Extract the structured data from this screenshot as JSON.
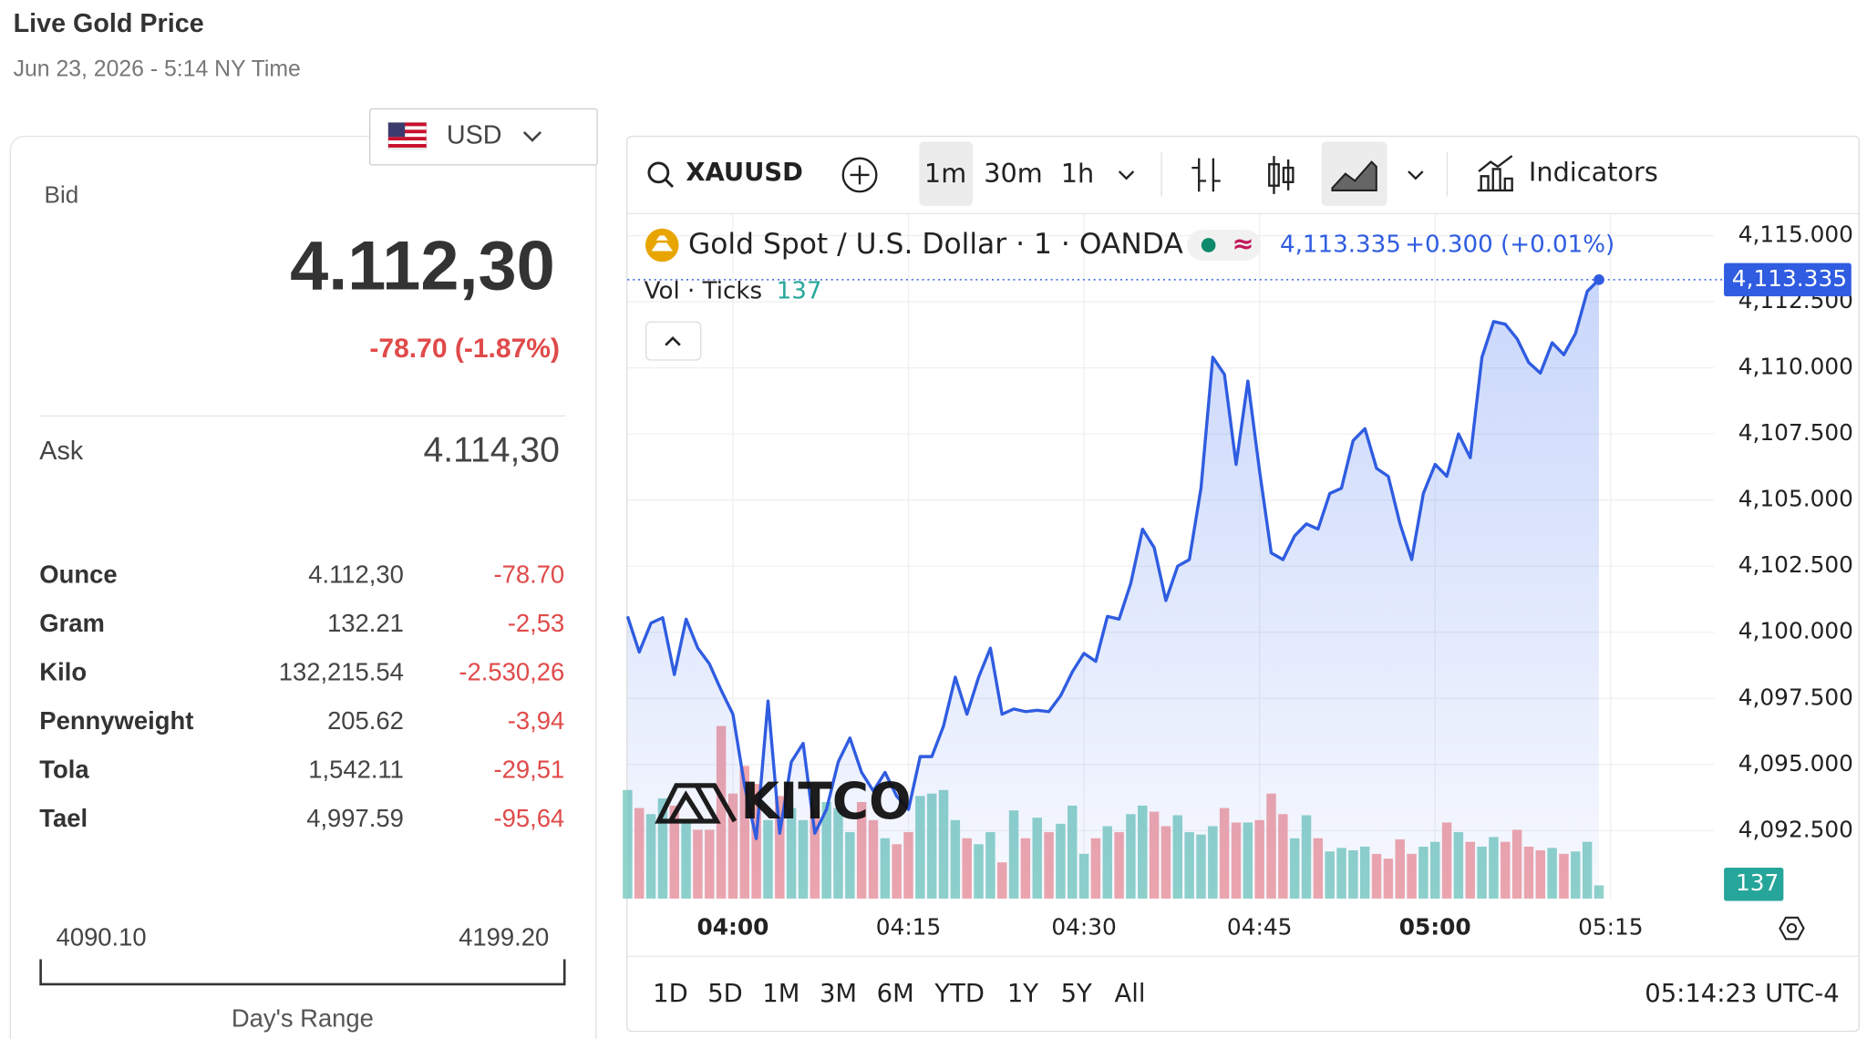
{
  "header": {
    "title": "Live Gold Price",
    "subtitle": "Jun 23, 2026 - 5:14 NY Time"
  },
  "currency": "USD",
  "quote": {
    "bid_label": "Bid",
    "bid": "4.112,30",
    "change": "-78.70 (-1.87%)",
    "ask_label": "Ask",
    "ask": "4.114,30"
  },
  "table": {
    "rows": [
      [
        "Ounce",
        "4.112,30",
        "-78.70"
      ],
      [
        "Gram",
        "132.21",
        "-2,53"
      ],
      [
        "Kilo",
        "132,215.54",
        "-2.530,26"
      ],
      [
        "Pennyweight",
        "205.62",
        "-3,94"
      ],
      [
        "Tola",
        "1,542.11",
        "-29,51"
      ],
      [
        "Tael",
        "4,997.59",
        "-95,64"
      ]
    ]
  },
  "day_range": {
    "low": "4090.10",
    "high": "4199.20",
    "label": "Day's Range"
  },
  "toolbar": {
    "symbol": "XAUUSD",
    "intervals": [
      "1m",
      "30m",
      "1h"
    ],
    "indicators": "Indicators"
  },
  "ranges": [
    "1D",
    "5D",
    "1M",
    "3M",
    "6M",
    "YTD",
    "1Y",
    "5Y",
    "All"
  ],
  "clock": "05:14:23 UTC-4",
  "watermark": "KITCO",
  "chart_data": {
    "type": "line",
    "x": [
      "03:51",
      "03:52",
      "03:53",
      "03:54",
      "03:55",
      "03:56",
      "03:57",
      "03:58",
      "03:59",
      "04:00",
      "04:01",
      "04:02",
      "04:03",
      "04:04",
      "04:05",
      "04:06",
      "04:07",
      "04:08",
      "04:09",
      "04:10",
      "04:11",
      "04:12",
      "04:13",
      "04:14",
      "04:15",
      "04:16",
      "04:17",
      "04:18",
      "04:19",
      "04:20",
      "04:21",
      "04:22",
      "04:23",
      "04:24",
      "04:25",
      "04:26",
      "04:27",
      "04:28",
      "04:29",
      "04:30",
      "04:31",
      "04:32",
      "04:33",
      "04:34",
      "04:35",
      "04:36",
      "04:37",
      "04:38",
      "04:39",
      "04:40",
      "04:41",
      "04:42",
      "04:43",
      "04:44",
      "04:45",
      "04:46",
      "04:47",
      "04:48",
      "04:49",
      "04:50",
      "04:51",
      "04:52",
      "04:53",
      "04:54",
      "04:55",
      "04:56",
      "04:57",
      "04:58",
      "04:59",
      "05:00",
      "05:01",
      "05:02",
      "05:03",
      "05:04",
      "05:05",
      "05:06",
      "05:07",
      "05:08",
      "05:09",
      "05:10",
      "05:11",
      "05:12",
      "05:13",
      "05:14"
    ],
    "series": [
      {
        "name": "Gold Spot / U.S. Dollar · 1 · OANDA",
        "color": "#2f5ce0",
        "values": [
          4100.6,
          4099.25,
          4100.35,
          4100.55,
          4098.4,
          4100.5,
          4099.4,
          4098.8,
          4097.8,
          4096.9,
          4094.2,
          4092.2,
          4097.4,
          4092.4,
          4095.1,
          4095.8,
          4092.4,
          4093.3,
          4095.1,
          4096.0,
          4094.7,
          4094.0,
          4094.7,
          4093.8,
          4093.3,
          4095.3,
          4095.3,
          4096.45,
          4098.3,
          4096.9,
          4098.3,
          4099.4,
          4096.9,
          4097.1,
          4097.0,
          4097.05,
          4097.0,
          4097.6,
          4098.5,
          4099.2,
          4098.9,
          4100.6,
          4100.5,
          4101.85,
          4103.9,
          4103.2,
          4101.2,
          4102.5,
          4102.75,
          4105.45,
          4110.4,
          4109.75,
          4106.35,
          4109.5,
          4106.1,
          4103.0,
          4102.75,
          4103.65,
          4104.1,
          4103.9,
          4105.25,
          4105.45,
          4107.25,
          4107.7,
          4106.2,
          4105.9,
          4104.1,
          4102.75,
          4105.25,
          4106.35,
          4105.9,
          4107.5,
          4106.6,
          4110.4,
          4111.75,
          4111.65,
          4111.1,
          4110.2,
          4109.8,
          4110.95,
          4110.5,
          4111.3,
          4112.9,
          4113.335
        ]
      },
      {
        "name": "Vol · Ticks",
        "axis": "volume",
        "up_color": "#8fd3c9",
        "down_color": "#f2a6aa",
        "values": [
          1125,
          938,
          875,
          1038,
          963,
          813,
          713,
          713,
          1788,
          1088,
          1375,
          1188,
          813,
          1063,
          938,
          813,
          938,
          1000,
          938,
          688,
          1000,
          813,
          625,
          563,
          688,
          1063,
          1088,
          1125,
          813,
          625,
          563,
          688,
          375,
          913,
          625,
          838,
          688,
          775,
          963,
          463,
          625,
          750,
          688,
          875,
          963,
          900,
          750,
          863,
          688,
          663,
          750,
          938,
          788,
          788,
          813,
          1088,
          875,
          625,
          863,
          625,
          488,
          525,
          500,
          538,
          463,
          413,
          613,
          463,
          538,
          588,
          788,
          688,
          588,
          538,
          638,
          588,
          713,
          538,
          500,
          525,
          463,
          488,
          588,
          137
        ]
      }
    ],
    "last": {
      "value": 4113.335,
      "label": "4,113.335",
      "change": "+0.300 (+0.01%)"
    },
    "ylim": [
      4089.93,
      4115.81
    ],
    "yticks": [
      {
        "value": 4092.5,
        "label": "4,092.500"
      },
      {
        "value": 4095,
        "label": "4,095.000"
      },
      {
        "value": 4097.5,
        "label": "4,097.500"
      },
      {
        "value": 4100,
        "label": "4,100.000"
      },
      {
        "value": 4102.5,
        "label": "4,102.500"
      },
      {
        "value": 4105,
        "label": "4,105.000"
      },
      {
        "value": 4107.5,
        "label": "4,107.500"
      },
      {
        "value": 4110,
        "label": "4,110.000"
      },
      {
        "value": 4112.5,
        "label": "4,112.500"
      },
      {
        "value": 4115,
        "label": "4,115.000"
      }
    ],
    "xticks": [
      "04:00",
      "04:15",
      "04:30",
      "04:45",
      "05:00",
      "05:15"
    ],
    "grid": true
  }
}
